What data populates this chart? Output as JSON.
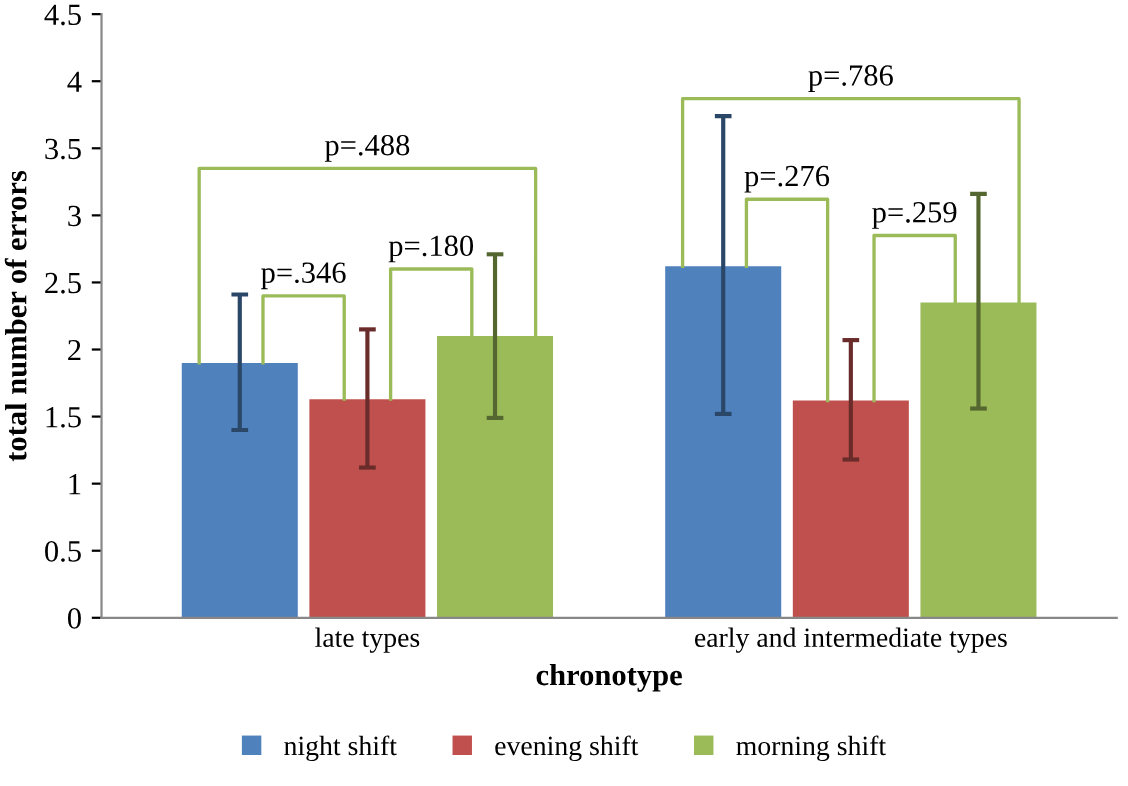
{
  "chart_data": {
    "type": "bar",
    "xlabel": "chronotype",
    "ylabel": "total number of errors",
    "categories": [
      "late types",
      "early and intermediate types"
    ],
    "series": [
      {
        "name": "night shift",
        "color": "#4f81bd",
        "values": [
          1.9,
          2.62
        ],
        "errors": [
          [
            1.4,
            2.41
          ],
          [
            1.52,
            3.74
          ]
        ]
      },
      {
        "name": "evening shift",
        "color": "#c0504d",
        "values": [
          1.63,
          1.62
        ],
        "errors": [
          [
            1.12,
            2.15
          ],
          [
            1.18,
            2.07
          ]
        ]
      },
      {
        "name": "morning shift",
        "color": "#9bbb59",
        "values": [
          2.1,
          2.35
        ],
        "errors": [
          [
            1.49,
            2.71
          ],
          [
            1.56,
            3.16
          ]
        ]
      }
    ],
    "annotations": [
      "p=.488",
      "p=.346",
      "p=.180",
      "p=.786",
      "p=.276",
      "p=.259"
    ],
    "ylim": [
      0,
      4.5
    ],
    "yticks": [
      0,
      0.5,
      1,
      1.5,
      2,
      2.5,
      3,
      3.5,
      4,
      4.5
    ],
    "grid": false,
    "legend": "bottom"
  }
}
